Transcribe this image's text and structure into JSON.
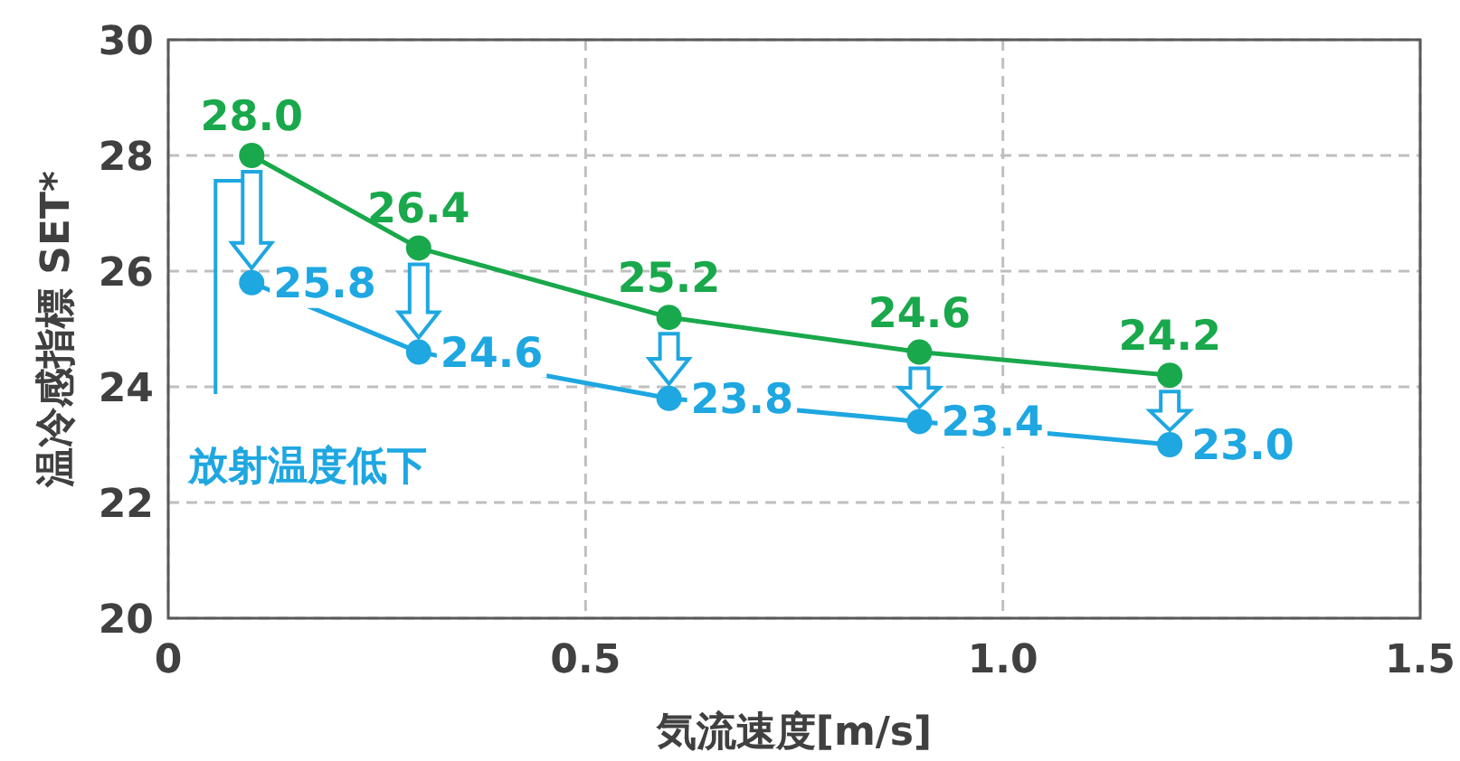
{
  "chart_data": {
    "type": "line",
    "xlabel": "気流速度[m/s]",
    "ylabel": "温冷感指標 SET*",
    "x": [
      0.1,
      0.3,
      0.6,
      0.9,
      1.2
    ],
    "series": [
      {
        "color": "#19a84b",
        "values": [
          28.0,
          26.4,
          25.2,
          24.6,
          24.2
        ],
        "value_labels": [
          "28.0",
          "26.4",
          "25.2",
          "24.6",
          "24.2"
        ]
      },
      {
        "color": "#1ea7e1",
        "values": [
          25.8,
          24.6,
          23.8,
          23.4,
          23.0
        ],
        "value_labels": [
          "25.8",
          "24.6",
          "23.8",
          "23.4",
          "23.0"
        ]
      }
    ],
    "xlim": [
      0,
      1.5
    ],
    "xticks": [
      0,
      0.5,
      {
        "value": 1,
        "label": "1.0"
      },
      1.5
    ],
    "ylim": [
      20,
      30
    ],
    "yticks": [
      20,
      22,
      24,
      26,
      28,
      30
    ],
    "grid": true,
    "marker": "circle",
    "line_style": "solid",
    "annotations": [
      "放射温度低下"
    ]
  }
}
